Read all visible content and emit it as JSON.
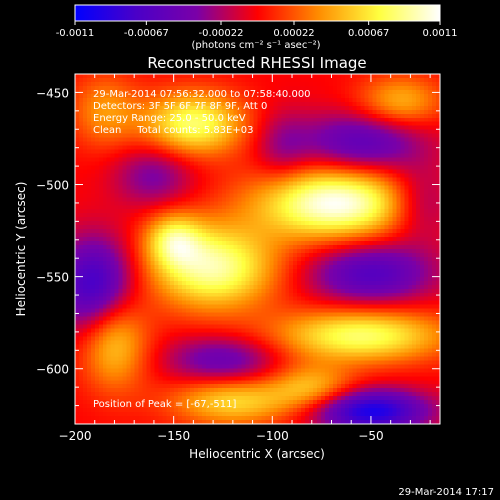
{
  "colorbar": {
    "ticks": [
      "-0.0011",
      "-0.00067",
      "-0.00022",
      "0.00022",
      "0.00067",
      "0.0011"
    ],
    "unit_label": "(photons cm⁻² s⁻¹ asec⁻²)",
    "range": [
      -0.0011,
      0.0011
    ],
    "stops": [
      "#0000ff",
      "#4a00c8",
      "#7a00a8",
      "#ff0000",
      "#ff8c00",
      "#ffff40",
      "#ffffff"
    ]
  },
  "title": "Reconstructed RHESSI Image",
  "info": {
    "time": "29-Mar-2014 07:56:32.000 to 07:58:40.000",
    "detectors": "Detectors: 3F 5F 6F 7F 8F 9F, Att 0",
    "energy": "Energy Range: 25.0 - 50.0 keV",
    "clean": "Clean     Total counts: 5.83E+03",
    "peak": "Position of Peak = [-67,-511]"
  },
  "footer_date": "29-Mar-2014 17:17",
  "chart_data": {
    "type": "heatmap",
    "title": "Reconstructed RHESSI Image",
    "xlabel": "Heliocentric X (arcsec)",
    "ylabel": "Heliocentric Y (arcsec)",
    "xlim": [
      -200,
      -15
    ],
    "ylim": [
      -630,
      -440
    ],
    "xticks": [
      -200,
      -150,
      -100,
      -50
    ],
    "yticks": [
      -450,
      -500,
      -550,
      -600
    ],
    "colorbar_range": [
      -0.0011,
      0.0011
    ],
    "peak_position": [
      -67,
      -511
    ],
    "sources": [
      {
        "x": -68,
        "y": -510,
        "amp": 1.0,
        "sx": 28,
        "sy": 14
      },
      {
        "x": -130,
        "y": -545,
        "amp": 0.85,
        "sx": 22,
        "sy": 16
      },
      {
        "x": -150,
        "y": -530,
        "amp": 0.55,
        "sx": 10,
        "sy": 10
      },
      {
        "x": -140,
        "y": -467,
        "amp": 0.75,
        "sx": 18,
        "sy": 12
      },
      {
        "x": -55,
        "y": -582,
        "amp": 0.75,
        "sx": 30,
        "sy": 10
      },
      {
        "x": -120,
        "y": -618,
        "amp": 0.55,
        "sx": 22,
        "sy": 9
      },
      {
        "x": -180,
        "y": -585,
        "amp": 0.55,
        "sx": 12,
        "sy": 18
      },
      {
        "x": -35,
        "y": -455,
        "amp": 0.45,
        "sx": 15,
        "sy": 10
      },
      {
        "x": -80,
        "y": -610,
        "amp": 0.45,
        "sx": 15,
        "sy": 9
      },
      {
        "x": -185,
        "y": -460,
        "amp": 0.35,
        "sx": 12,
        "sy": 14
      },
      {
        "x": -190,
        "y": -555,
        "amp": -0.75,
        "sx": 14,
        "sy": 18
      },
      {
        "x": -50,
        "y": -623,
        "amp": -0.9,
        "sx": 20,
        "sy": 8
      },
      {
        "x": -55,
        "y": -478,
        "amp": -0.55,
        "sx": 22,
        "sy": 12
      },
      {
        "x": -125,
        "y": -595,
        "amp": -0.45,
        "sx": 20,
        "sy": 9
      },
      {
        "x": -50,
        "y": -548,
        "amp": -0.6,
        "sx": 22,
        "sy": 12
      },
      {
        "x": -160,
        "y": -495,
        "amp": -0.35,
        "sx": 14,
        "sy": 12
      },
      {
        "x": -25,
        "y": -510,
        "amp": -0.4,
        "sx": 12,
        "sy": 14
      },
      {
        "x": -95,
        "y": -480,
        "amp": -0.25,
        "sx": 10,
        "sy": 14
      }
    ]
  }
}
